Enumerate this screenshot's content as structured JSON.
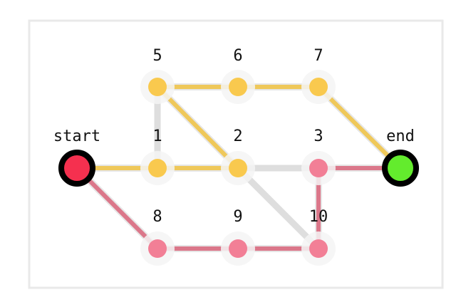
{
  "colors": {
    "frame": "#e9e9e9",
    "halo": "#f4f4f4",
    "edge_default": "#dedede",
    "path_yellow": "#f0c44a",
    "path_red": "#d96a80",
    "node_yellow": "#f9c94e",
    "node_red": "#f27f96",
    "start_fill": "#f5304f",
    "end_fill": "#63ec2d",
    "endpoint_stroke": "#000000"
  },
  "nodes": [
    {
      "id": "start",
      "label": "start",
      "kind": "start"
    },
    {
      "id": "1",
      "label": "1",
      "kind": "yellow"
    },
    {
      "id": "2",
      "label": "2",
      "kind": "yellow"
    },
    {
      "id": "3",
      "label": "3",
      "kind": "red"
    },
    {
      "id": "end",
      "label": "end",
      "kind": "end"
    },
    {
      "id": "5",
      "label": "5",
      "kind": "yellow"
    },
    {
      "id": "6",
      "label": "6",
      "kind": "yellow"
    },
    {
      "id": "7",
      "label": "7",
      "kind": "yellow"
    },
    {
      "id": "8",
      "label": "8",
      "kind": "red"
    },
    {
      "id": "9",
      "label": "9",
      "kind": "red"
    },
    {
      "id": "10",
      "label": "10",
      "kind": "red"
    }
  ],
  "edges": [
    {
      "from": "start",
      "to": "1",
      "style": "yellow"
    },
    {
      "from": "1",
      "to": "2",
      "style": "yellow"
    },
    {
      "from": "1",
      "to": "5",
      "style": "default"
    },
    {
      "from": "5",
      "to": "6",
      "style": "yellow"
    },
    {
      "from": "6",
      "to": "7",
      "style": "yellow"
    },
    {
      "from": "7",
      "to": "end",
      "style": "yellow"
    },
    {
      "from": "5",
      "to": "2",
      "style": "yellow"
    },
    {
      "from": "2",
      "to": "3",
      "style": "default"
    },
    {
      "from": "2",
      "to": "10",
      "style": "default"
    },
    {
      "from": "3",
      "to": "end",
      "style": "red"
    },
    {
      "from": "3",
      "to": "10",
      "style": "red"
    },
    {
      "from": "start",
      "to": "8",
      "style": "red"
    },
    {
      "from": "8",
      "to": "9",
      "style": "red"
    },
    {
      "from": "9",
      "to": "10",
      "style": "red"
    }
  ]
}
